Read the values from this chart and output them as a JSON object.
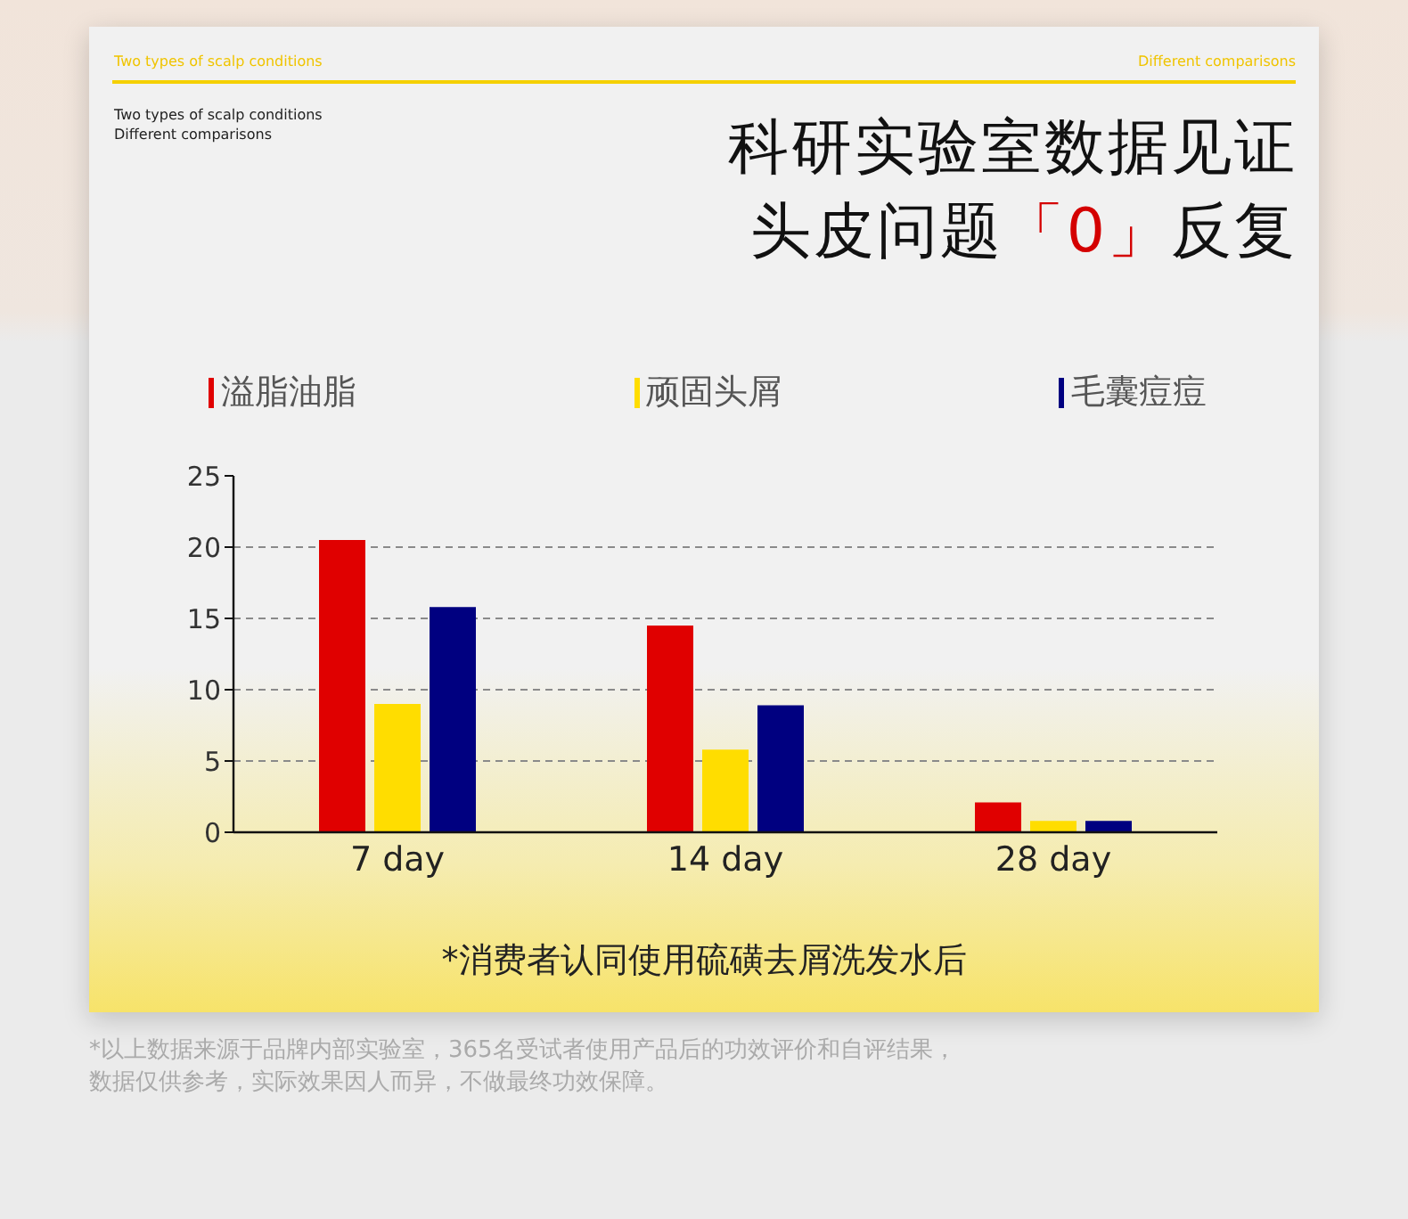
{
  "chart_data": {
    "type": "bar",
    "title": "科研实验室数据见证",
    "subtitle": "头皮问题「0」反复",
    "categories": [
      "7 day",
      "14 day",
      "28 day"
    ],
    "series": [
      {
        "name": "溢脂油脂",
        "color": "#e00000",
        "values": [
          20.5,
          14.5,
          2.1
        ]
      },
      {
        "name": "顽固头屑",
        "color": "#ffdd00",
        "values": [
          9,
          5.8,
          0.8
        ]
      },
      {
        "name": "毛囊痘痘",
        "color": "#000080",
        "values": [
          15.8,
          8.9,
          0.8
        ]
      }
    ],
    "ylim": [
      0,
      25
    ],
    "yticks": [
      0,
      5,
      10,
      15,
      20,
      25
    ],
    "grid": "y",
    "legend": "top",
    "annotations": [
      "Two types of scalp conditions",
      "Different comparisons",
      "Two types of scalp conditions",
      "Different comparisons",
      "*消费者认同使用硫磺去屑洗发水后",
      "*以上数据来源于品牌内部实验室，365名受试者使用产品后的功效评价和自评结果，数据仅供参考，实际效果因人而异，不做最终功效保障。"
    ]
  }
}
